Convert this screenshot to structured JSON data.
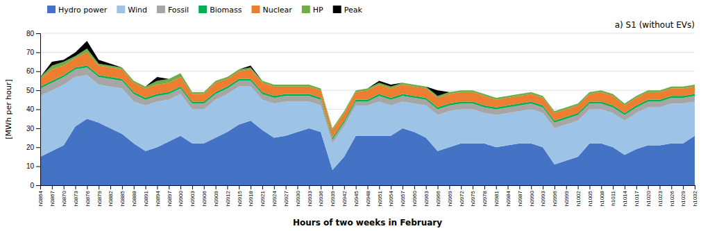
{
  "chart_data": {
    "type": "area",
    "stacked": true,
    "title": "a) S1 (without EVs)",
    "x_label": "Hours of two weeks in February",
    "y_label": "[MWh per hour]",
    "ylim": [
      0,
      80
    ],
    "yticks": [
      0,
      10,
      20,
      30,
      40,
      50,
      60,
      70,
      80
    ],
    "grid": true,
    "legend": "top-left",
    "categories": [
      "h0864",
      "h0867",
      "h0870",
      "h0873",
      "h0876",
      "h0879",
      "h0882",
      "h0885",
      "h0888",
      "h0891",
      "h0894",
      "h0897",
      "h0900",
      "h0903",
      "h0906",
      "h0909",
      "h0912",
      "h0915",
      "h0918",
      "h0921",
      "h0924",
      "h0927",
      "h0930",
      "h0933",
      "h0936",
      "h0939",
      "h0942",
      "h0945",
      "h0948",
      "h0951",
      "h0954",
      "h0957",
      "h0960",
      "h0963",
      "h0966",
      "h0969",
      "h0972",
      "h0975",
      "h0978",
      "h0981",
      "h0984",
      "h0987",
      "h0990",
      "h0993",
      "h0996",
      "h0999",
      "h1002",
      "h1005",
      "h1008",
      "h1011",
      "h1014",
      "h1017",
      "h1020",
      "h1023",
      "h1026",
      "h1029",
      "h1032"
    ],
    "series": [
      {
        "name": "Hydro power",
        "color": "#4472C4",
        "values": [
          15,
          18,
          21,
          31,
          35,
          33,
          30,
          27,
          22,
          18,
          20,
          23,
          26,
          22,
          22,
          25,
          28,
          32,
          34,
          29,
          25,
          26,
          28,
          30,
          28,
          8,
          15,
          26,
          26,
          26,
          26,
          30,
          28,
          25,
          18,
          20,
          22,
          22,
          22,
          20,
          21,
          22,
          22,
          20,
          11,
          13,
          15,
          22,
          22,
          20,
          16,
          19,
          21,
          21,
          22,
          22,
          26
        ]
      },
      {
        "name": "Wind",
        "color": "#9DC3E6",
        "values": [
          32,
          32,
          32,
          26,
          23,
          20,
          22,
          24,
          22,
          24,
          24,
          22,
          22,
          18,
          18,
          20,
          20,
          20,
          18,
          16,
          18,
          18,
          16,
          14,
          14,
          14,
          16,
          16,
          16,
          18,
          16,
          14,
          15,
          17,
          19,
          19,
          18,
          18,
          16,
          17,
          17,
          17,
          18,
          18,
          19,
          19,
          19,
          18,
          18,
          18,
          18,
          19,
          20,
          20,
          21,
          21,
          18
        ]
      },
      {
        "name": "Fossil",
        "color": "#A6A6A6",
        "values": [
          4,
          4,
          4,
          4,
          4,
          4,
          4,
          4,
          4,
          3,
          3,
          3,
          3,
          3,
          3,
          3,
          3,
          3,
          3,
          3,
          3,
          3,
          3,
          3,
          3,
          2,
          2,
          2,
          2,
          3,
          3,
          3,
          3,
          3,
          3,
          3,
          3,
          3,
          3,
          3,
          3,
          3,
          3,
          3,
          3,
          3,
          3,
          3,
          3,
          3,
          3,
          3,
          3,
          3,
          3,
          3,
          3
        ]
      },
      {
        "name": "Biomass",
        "color": "#00B050",
        "values": [
          1,
          1,
          1,
          1,
          1,
          1,
          1,
          1,
          1,
          1,
          1,
          1,
          1,
          1,
          1,
          1,
          1,
          1,
          1,
          1,
          1,
          1,
          1,
          1,
          1,
          1,
          1,
          1,
          1,
          1,
          1,
          1,
          1,
          1,
          1,
          1,
          1,
          1,
          1,
          1,
          1,
          1,
          1,
          1,
          1,
          1,
          1,
          1,
          1,
          1,
          1,
          1,
          1,
          1,
          1,
          1,
          1
        ]
      },
      {
        "name": "Nuclear",
        "color": "#ED7D31",
        "values": [
          4,
          6,
          5,
          5,
          7,
          5,
          5,
          5,
          5,
          5,
          5,
          5,
          5,
          4,
          4,
          5,
          4,
          4,
          5,
          5,
          5,
          4,
          4,
          4,
          4,
          4,
          4,
          4,
          5,
          5,
          5,
          5,
          5,
          5,
          5,
          5,
          5,
          5,
          5,
          4,
          4,
          4,
          4,
          4,
          4,
          4,
          4,
          4,
          5,
          5,
          4,
          4,
          4,
          4,
          4,
          4,
          4
        ]
      },
      {
        "name": "HP",
        "color": "#70AD47",
        "values": [
          1,
          2,
          2,
          1,
          2,
          1,
          1,
          1,
          1,
          1,
          2,
          2,
          2,
          1,
          1,
          1,
          1,
          1,
          1,
          1,
          1,
          1,
          1,
          1,
          1,
          1,
          1,
          1,
          1,
          1,
          1,
          1,
          1,
          1,
          1,
          1,
          1,
          1,
          1,
          1,
          1,
          1,
          1,
          1,
          1,
          1,
          1,
          1,
          1,
          1,
          1,
          1,
          1,
          1,
          1,
          1,
          1
        ]
      },
      {
        "name": "Peak",
        "color": "#000000",
        "values": [
          0,
          2,
          1,
          2,
          4,
          2,
          1,
          0,
          0,
          0,
          2,
          0,
          0,
          0,
          0,
          0,
          0,
          0,
          1,
          0,
          0,
          0,
          0,
          0,
          0,
          0,
          0,
          0,
          0,
          1,
          1,
          0,
          0,
          0,
          3,
          0,
          0,
          0,
          0,
          0,
          0,
          0,
          0,
          0,
          0,
          0,
          0,
          0,
          0,
          0,
          0,
          0,
          0,
          0,
          0,
          0,
          0
        ]
      }
    ]
  }
}
